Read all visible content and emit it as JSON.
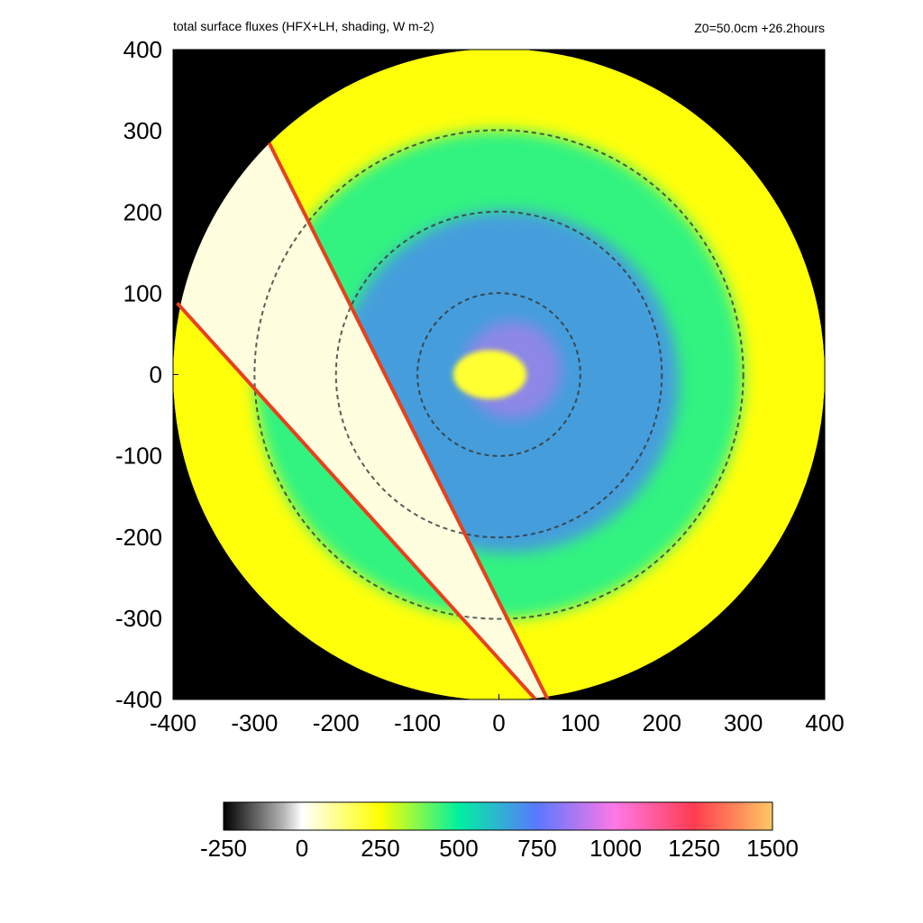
{
  "header": {
    "title": "total surface fluxes (HFX+LH, shading, W m-2)",
    "info": "Z0=50.0cm  +26.2hours"
  },
  "chart_data": {
    "type": "heatmap",
    "title": "total surface fluxes (HFX+LH, shading, W m-2)",
    "annotation": "Z0=50.0cm  +26.2hours",
    "xlim": [
      -400,
      400
    ],
    "ylim": [
      -400,
      400
    ],
    "xticks": [
      "-400",
      "-300",
      "-200",
      "-100",
      "0",
      "100",
      "200",
      "300",
      "400"
    ],
    "yticks": [
      "400",
      "300",
      "200",
      "100",
      "0",
      "-100",
      "-200",
      "-300",
      "-400"
    ],
    "domain_radius": 400,
    "range_rings": [
      100,
      200,
      300
    ],
    "red_lines": [
      {
        "from": [
          -282,
          285
        ],
        "to": [
          60,
          -400
        ]
      },
      {
        "from": [
          -395,
          88
        ],
        "to": [
          45,
          -400
        ]
      }
    ],
    "colorbar": {
      "min": -250,
      "max": 1500,
      "tick_values": [
        -250,
        0,
        250,
        500,
        750,
        1000,
        1250,
        1500
      ],
      "tick_labels": [
        "-250",
        "0",
        "250",
        "500",
        "750",
        "1000",
        "1250",
        "1500"
      ],
      "stops": [
        {
          "v": -250,
          "c": "#000000"
        },
        {
          "v": -60,
          "c": "#b4b4b4"
        },
        {
          "v": 0,
          "c": "#ffffff"
        },
        {
          "v": 250,
          "c": "#ffff00"
        },
        {
          "v": 500,
          "c": "#00f0a0"
        },
        {
          "v": 750,
          "c": "#5a78ff"
        },
        {
          "v": 1000,
          "c": "#ff78e6"
        },
        {
          "v": 1250,
          "c": "#ff3c50"
        },
        {
          "v": 1500,
          "c": "#ffc864"
        }
      ]
    },
    "field_description": [
      {
        "region": "outside domain",
        "value": null
      },
      {
        "region": "outer ring",
        "value": 240
      },
      {
        "region": "between red lines (wake)",
        "value": 30
      },
      {
        "region": "mid ring",
        "value": 450
      },
      {
        "region": "inner core ring",
        "value": 700
      },
      {
        "region": "eye",
        "value": 200
      }
    ]
  }
}
